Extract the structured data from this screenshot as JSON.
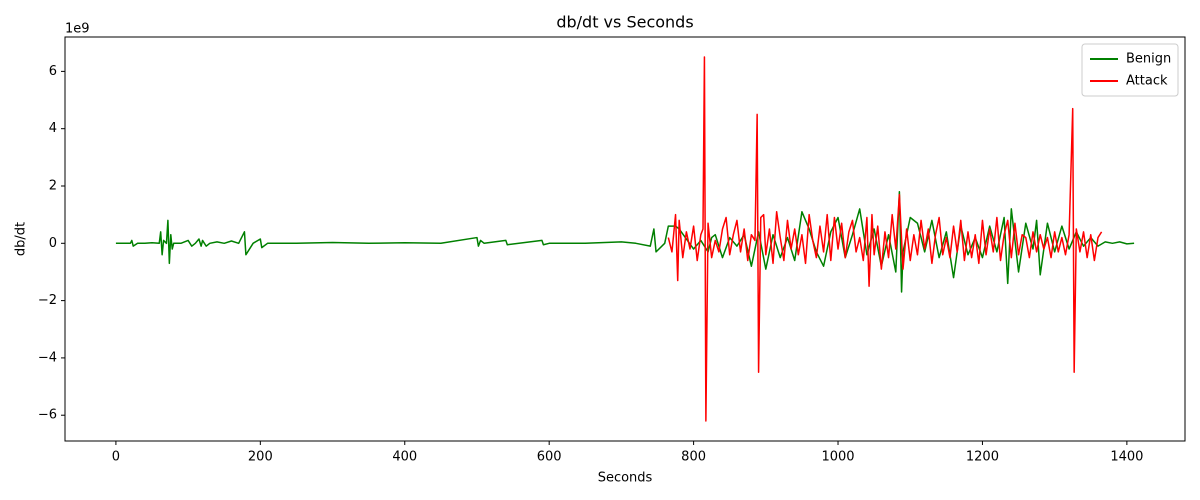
{
  "chart_data": {
    "type": "line",
    "title": "db/dt vs Seconds",
    "x_label": "Seconds",
    "y_label": "db/dt",
    "y_offset_text": "1e9",
    "xlim": [
      -70.5,
      1480.5
    ],
    "ylim": [
      -6.9,
      7.2
    ],
    "xticks": [
      0,
      200,
      400,
      600,
      800,
      1000,
      1200,
      1400
    ],
    "yticks": [
      {
        "value": -6,
        "label": "−6"
      },
      {
        "value": -4,
        "label": "−4"
      },
      {
        "value": -2,
        "label": "−2"
      },
      0,
      2,
      4,
      6
    ],
    "legend": "upper right",
    "series": [
      {
        "name": "Benign",
        "color": "#008000",
        "x": [
          0,
          10,
          20,
          22,
          24,
          30,
          40,
          50,
          60,
          62,
          64,
          66,
          70,
          72,
          74,
          76,
          78,
          80,
          90,
          100,
          105,
          110,
          115,
          118,
          120,
          125,
          130,
          140,
          150,
          160,
          170,
          178,
          180,
          190,
          200,
          202,
          210,
          250,
          300,
          350,
          400,
          450,
          500,
          502,
          505,
          510,
          540,
          542,
          590,
          592,
          600,
          650,
          700,
          720,
          740,
          745,
          748,
          760,
          765,
          770,
          775,
          780,
          800,
          810,
          820,
          825,
          830,
          840,
          850,
          860,
          870,
          880,
          890,
          900,
          910,
          920,
          930,
          940,
          950,
          960,
          970,
          980,
          990,
          1000,
          1010,
          1020,
          1030,
          1040,
          1050,
          1060,
          1070,
          1080,
          1085,
          1088,
          1090,
          1100,
          1110,
          1120,
          1130,
          1140,
          1150,
          1160,
          1170,
          1180,
          1190,
          1200,
          1210,
          1220,
          1230,
          1235,
          1240,
          1250,
          1260,
          1270,
          1275,
          1280,
          1290,
          1300,
          1310,
          1320,
          1330,
          1340,
          1350,
          1360,
          1370,
          1380,
          1390,
          1400,
          1410
        ],
        "values": [
          0,
          0,
          0,
          0.1,
          -0.1,
          0,
          0,
          0.02,
          0,
          0.4,
          -0.4,
          0.1,
          0,
          0.8,
          -0.7,
          0.3,
          -0.2,
          0,
          0,
          0.1,
          -0.1,
          0,
          0.15,
          -0.1,
          0.1,
          -0.1,
          0,
          0.05,
          0,
          0.08,
          0,
          0.4,
          -0.4,
          0,
          0.15,
          -0.15,
          0,
          0,
          0.03,
          0,
          0.02,
          0,
          0.2,
          -0.1,
          0.1,
          0,
          0.1,
          -0.05,
          0.1,
          -0.05,
          0,
          0,
          0.05,
          0,
          -0.1,
          0.5,
          -0.3,
          0,
          0.6,
          0.6,
          0.6,
          0.5,
          -0.2,
          0.1,
          -0.3,
          0.2,
          0.3,
          -0.5,
          0.2,
          -0.1,
          0.3,
          -0.8,
          0.4,
          -0.9,
          0.3,
          -0.5,
          0.2,
          -0.6,
          1.1,
          0.5,
          -0.3,
          -0.8,
          0.4,
          0.9,
          -0.5,
          0.3,
          1.2,
          -0.4,
          0.5,
          -0.8,
          0.3,
          -1.0,
          1.8,
          -1.7,
          -0.3,
          0.9,
          0.7,
          -0.3,
          0.8,
          -0.5,
          0.4,
          -1.2,
          0.6,
          -0.4,
          0.2,
          -0.5,
          0.6,
          -0.3,
          0.9,
          -1.4,
          1.2,
          -1.0,
          0.7,
          -0.2,
          0.8,
          -1.1,
          0.7,
          -0.3,
          0.6,
          -0.2,
          0.4,
          -0.1,
          0.2,
          -0.1,
          0.05,
          0,
          0.05,
          -0.02,
          0
        ]
      },
      {
        "name": "Attack",
        "color": "#ff0000",
        "x": [
          765,
          770,
          775,
          778,
          780,
          785,
          790,
          795,
          800,
          805,
          810,
          813,
          815,
          817,
          820,
          825,
          830,
          835,
          840,
          845,
          850,
          855,
          860,
          865,
          870,
          875,
          880,
          885,
          888,
          890,
          893,
          897,
          900,
          905,
          910,
          915,
          920,
          925,
          930,
          935,
          940,
          945,
          950,
          955,
          960,
          965,
          970,
          975,
          980,
          985,
          990,
          995,
          1000,
          1005,
          1010,
          1015,
          1020,
          1025,
          1030,
          1035,
          1040,
          1043,
          1047,
          1050,
          1055,
          1060,
          1065,
          1070,
          1075,
          1080,
          1085,
          1090,
          1095,
          1100,
          1105,
          1110,
          1115,
          1120,
          1125,
          1130,
          1135,
          1140,
          1145,
          1150,
          1155,
          1160,
          1165,
          1170,
          1175,
          1180,
          1185,
          1190,
          1195,
          1200,
          1205,
          1210,
          1215,
          1220,
          1225,
          1230,
          1235,
          1240,
          1245,
          1250,
          1255,
          1260,
          1265,
          1270,
          1275,
          1280,
          1285,
          1290,
          1295,
          1300,
          1305,
          1310,
          1315,
          1320,
          1325,
          1327,
          1330,
          1335,
          1340,
          1345,
          1350,
          1355,
          1360,
          1365
        ],
        "values": [
          0.2,
          -0.3,
          1.0,
          -1.3,
          0.8,
          -0.5,
          0.4,
          -0.2,
          0.6,
          -0.6,
          0.3,
          0.5,
          6.5,
          -6.2,
          0.7,
          -0.5,
          0.1,
          -0.3,
          0.5,
          0.9,
          -0.4,
          0.3,
          0.8,
          -0.3,
          0.5,
          -0.6,
          0.3,
          0.1,
          4.5,
          -4.5,
          0.9,
          1.0,
          -0.4,
          0.5,
          -0.7,
          1.1,
          0.2,
          -0.6,
          0.8,
          -0.2,
          0.5,
          -0.4,
          0.3,
          -0.7,
          1.0,
          0.1,
          -0.5,
          0.6,
          -0.3,
          1.0,
          -0.6,
          0.9,
          -0.2,
          0.7,
          -0.5,
          0.4,
          0.8,
          -0.3,
          0.2,
          -0.6,
          0.9,
          -1.5,
          1.0,
          -0.4,
          0.6,
          -0.9,
          0.4,
          -0.5,
          1.0,
          -0.2,
          1.7,
          -0.9,
          0.5,
          -0.6,
          0.3,
          -0.4,
          0.8,
          -0.2,
          0.5,
          -0.7,
          0.3,
          0.9,
          -0.4,
          0.2,
          -0.5,
          0.6,
          -0.3,
          0.8,
          -0.6,
          0.4,
          -0.5,
          0.3,
          -0.7,
          0.8,
          -0.4,
          0.5,
          -0.3,
          0.9,
          -0.6,
          0.3,
          0.8,
          -0.5,
          0.7,
          -0.4,
          0.3,
          0.2,
          -0.5,
          0.4,
          -0.3,
          0.3,
          -0.2,
          0.2,
          -0.5,
          0.4,
          -0.3,
          0.2,
          -0.4,
          0.3,
          4.7,
          -4.5,
          0.5,
          -0.3,
          0.4,
          -0.5,
          0.3,
          -0.6,
          0.2,
          0.4
        ]
      }
    ]
  }
}
